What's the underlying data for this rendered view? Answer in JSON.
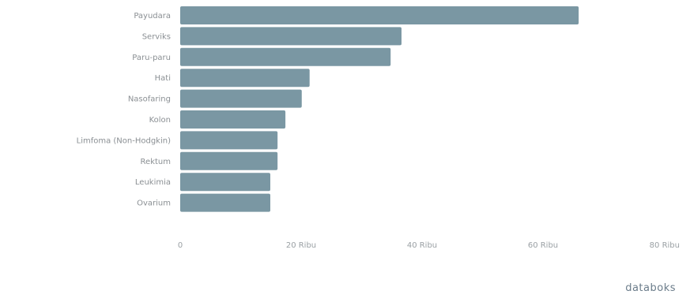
{
  "brand": "databoks",
  "chart_data": {
    "type": "bar",
    "orientation": "horizontal",
    "categories": [
      "Payudara",
      "Serviks",
      "Paru-paru",
      "Hati",
      "Nasofaring",
      "Kolon",
      "Limfoma (Non-Hodgkin)",
      "Rektum",
      "Leukimia",
      "Ovarium"
    ],
    "values": [
      65.9,
      36.6,
      34.8,
      21.4,
      20.1,
      17.4,
      16.1,
      16.1,
      14.9,
      14.9
    ],
    "xlim": [
      0,
      80
    ],
    "ticks": [
      {
        "value": 0,
        "label": "0"
      },
      {
        "value": 20,
        "label": "20 Ribu"
      },
      {
        "value": 40,
        "label": "40 Ribu"
      },
      {
        "value": 60,
        "label": "60 Ribu"
      },
      {
        "value": 80,
        "label": "80 Ribu"
      }
    ],
    "bar_color": "#7a97a3",
    "grid": false
  }
}
